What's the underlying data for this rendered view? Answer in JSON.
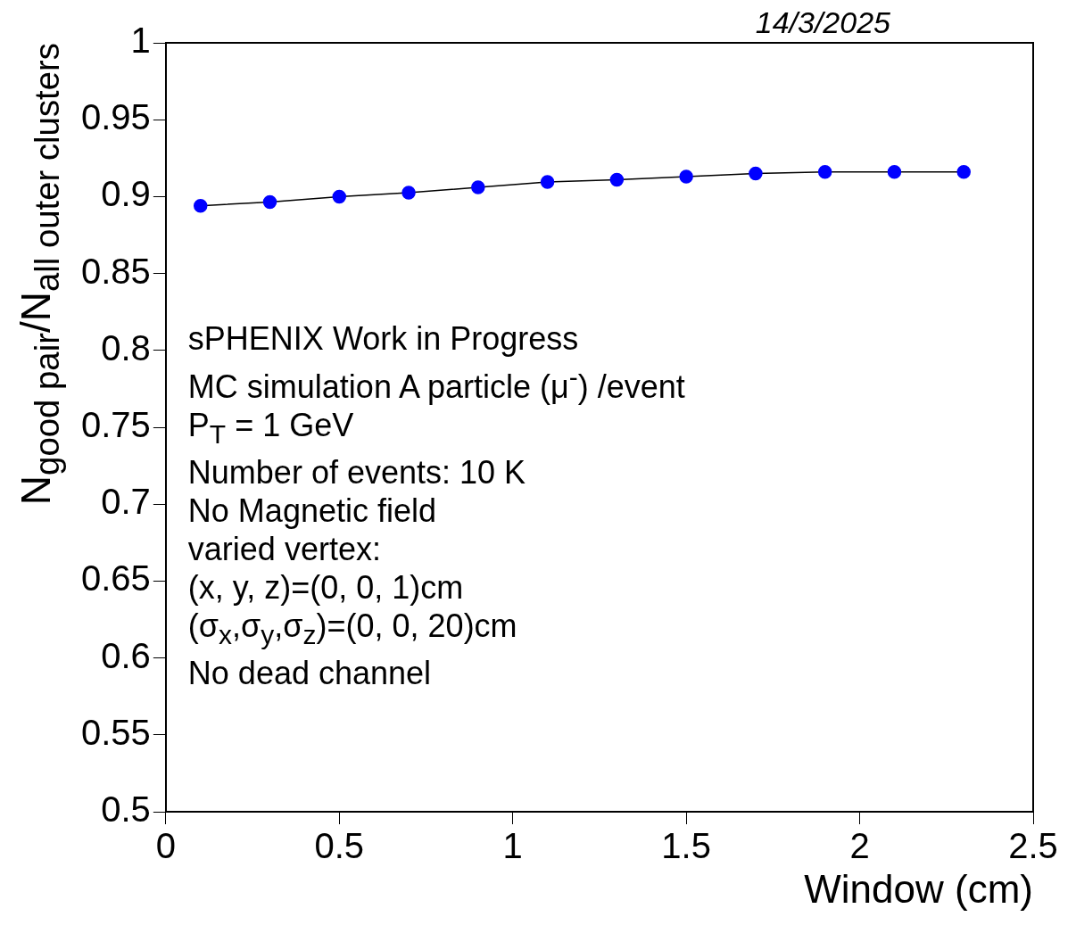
{
  "chart_data": {
    "type": "line",
    "subtitle": "14/3/2025",
    "xlabel": "Window (cm)",
    "ylabel": "N$_{good pair}$/N$_{all outer clusters}$",
    "x": [
      0.1,
      0.3,
      0.5,
      0.7,
      0.9,
      1.1,
      1.3,
      1.5,
      1.7,
      1.9,
      2.1,
      2.3
    ],
    "series": [
      {
        "color": "#0000ff",
        "values": [
          0.894,
          0.8965,
          0.9,
          0.9025,
          0.906,
          0.9095,
          0.911,
          0.913,
          0.915,
          0.916,
          0.916,
          0.916
        ]
      }
    ],
    "xlim": [
      0,
      2.5
    ],
    "xticks": [
      0,
      0.5,
      1,
      1.5,
      2,
      2.5
    ],
    "ylim": [
      0.5,
      1
    ],
    "yticks": [
      0.5,
      0.55,
      0.6,
      0.65,
      0.7,
      0.75,
      0.8,
      0.85,
      0.9,
      0.95,
      1
    ],
    "annotations": [
      "sPHENIX Work in Progress",
      "MC simulation A particle (μ$^{-}$) /event",
      "P$_{T}$ = 1 GeV",
      "Number of events: 10 K",
      "No Magnetic field",
      "varied vertex:",
      "(x, y, z)=(0, 0, 1)cm",
      "(σ$_{x}$,σ$_{y}$,σ$_{z}$)=(0, 0, 20)cm",
      "No dead channel"
    ],
    "grid": false,
    "legend": false,
    "marker": "circle",
    "line_style": "solid"
  }
}
